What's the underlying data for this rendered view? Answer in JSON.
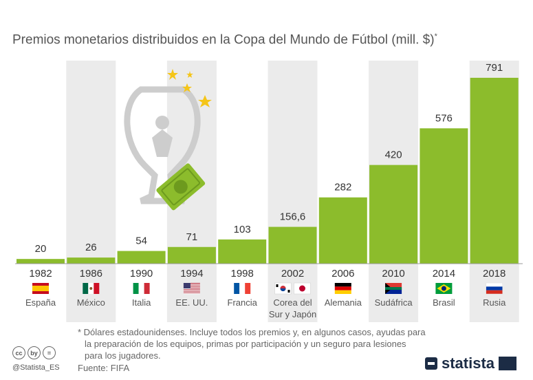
{
  "title": "Premios monetarios distribuidos en la Copa del Mundo de Fútbol (mill. $)",
  "title_mark": "*",
  "chart_data": {
    "type": "bar",
    "categories": [
      "1982",
      "1986",
      "1990",
      "1994",
      "1998",
      "2002",
      "2006",
      "2010",
      "2014",
      "2018"
    ],
    "countries": [
      "España",
      "México",
      "Italia",
      "EE. UU.",
      "Francia",
      "Corea del Sur y Japón",
      "Alemania",
      "Sudáfrica",
      "Brasil",
      "Rusia"
    ],
    "country_lines": [
      [
        "España"
      ],
      [
        "México"
      ],
      [
        "Italia"
      ],
      [
        "EE. UU."
      ],
      [
        "Francia"
      ],
      [
        "Corea del",
        "Sur y Japón"
      ],
      [
        "Alemania"
      ],
      [
        "Sudáfrica"
      ],
      [
        "Brasil"
      ],
      [
        "Rusia"
      ]
    ],
    "values": [
      20,
      26,
      54,
      71,
      103,
      156.6,
      282,
      420,
      576,
      791
    ],
    "value_labels": [
      "20",
      "26",
      "54",
      "71",
      "103",
      "156,6",
      "282",
      "420",
      "576",
      "791"
    ],
    "ylim": [
      0,
      791
    ],
    "bar_color": "#8cbc2c",
    "band_color": "#ebebeb",
    "flags": [
      "spain",
      "mexico",
      "italy",
      "usa",
      "france",
      "korea+japan",
      "germany",
      "south-africa",
      "brazil",
      "russia"
    ]
  },
  "footnote": {
    "line1": "* Dólares estadounidenses. Incluye todos los premios y, en algunos casos, ayudas para",
    "line2": "la preparación de los equipos, primas por participación y un seguro para lesiones",
    "line3": "para los jugadores."
  },
  "source": "Fuente: FIFA",
  "handle": "@Statista_ES",
  "license_icons": [
    "cc",
    "by",
    "=",
    ""
  ],
  "logo_text": "statista",
  "illustration": {
    "trophy-icon": "#cfcfcf",
    "money-icon": "#8cbc2c",
    "stars-icon": "#f5c518"
  }
}
